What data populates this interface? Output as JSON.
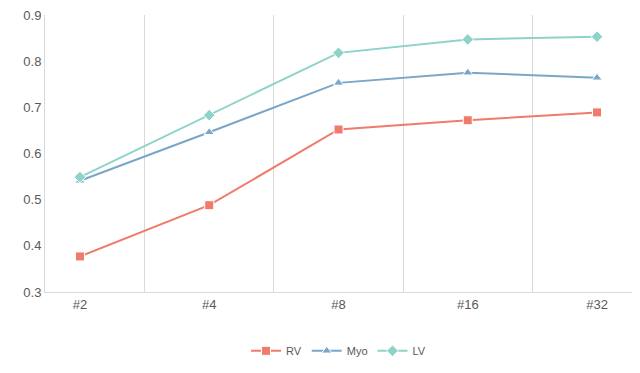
{
  "chart_data": {
    "type": "line",
    "categories": [
      "#2",
      "#4",
      "#8",
      "#16",
      "#32"
    ],
    "series": [
      {
        "name": "RV",
        "color": "#f07b6c",
        "marker": "square",
        "line_style": "solid",
        "values": [
          0.377,
          0.488,
          0.652,
          0.672,
          0.689
        ]
      },
      {
        "name": "Myo",
        "color": "#7aa6c8",
        "marker": "triangle-up",
        "line_style": "solid",
        "values": [
          0.541,
          0.646,
          0.753,
          0.775,
          0.764
        ]
      },
      {
        "name": "LV",
        "color": "#8ed3c9",
        "marker": "diamond",
        "line_style": "solid",
        "values": [
          0.549,
          0.683,
          0.818,
          0.847,
          0.853
        ]
      }
    ],
    "ylim": [
      0.3,
      0.9
    ],
    "yticks": [
      0.3,
      0.4,
      0.5,
      0.6,
      0.7,
      0.8,
      0.9
    ],
    "grid": true,
    "legend": "bottom"
  }
}
